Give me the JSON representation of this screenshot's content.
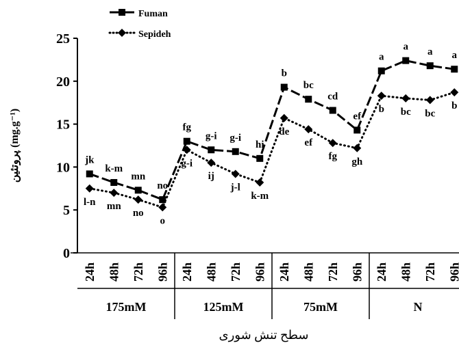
{
  "colors": {
    "ink": "#000000",
    "background": "#ffffff"
  },
  "chart_data": {
    "type": "line",
    "title": "",
    "xlabel": "سطح تنش شوری",
    "ylabel": "پروتئین (mg.g⁻¹)",
    "ylim": [
      0,
      25
    ],
    "yticks": [
      0,
      5,
      10,
      15,
      20,
      25
    ],
    "grid": false,
    "legend_position": "top-left",
    "groups": [
      "175mM",
      "125mM",
      "75mM",
      "N"
    ],
    "categories": [
      "24h",
      "48h",
      "72h",
      "96h"
    ],
    "series": [
      {
        "name": "Fuman",
        "style": "dashed-square",
        "values": [
          [
            9.2,
            8.2,
            7.3,
            6.2
          ],
          [
            13.0,
            12.0,
            11.8,
            11.0
          ],
          [
            19.3,
            17.9,
            16.6,
            14.3
          ],
          [
            21.2,
            22.4,
            21.8,
            21.4
          ]
        ],
        "labels": [
          [
            "jk",
            "k-m",
            "mn",
            "no"
          ],
          [
            "fg",
            "g-i",
            "g-i",
            "hi"
          ],
          [
            "b",
            "bc",
            "cd",
            "ef"
          ],
          [
            "a",
            "a",
            "a",
            "a"
          ]
        ]
      },
      {
        "name": "Sepideh",
        "style": "dotted-diamond",
        "values": [
          [
            7.5,
            7.0,
            6.2,
            5.3
          ],
          [
            12.0,
            10.5,
            9.2,
            8.2
          ],
          [
            15.7,
            14.4,
            12.8,
            12.2
          ],
          [
            18.3,
            18.0,
            17.8,
            18.7
          ]
        ],
        "labels": [
          [
            "l-n",
            "mn",
            "no",
            "o"
          ],
          [
            "g-i",
            "ij",
            "j-l",
            "k-m"
          ],
          [
            "de",
            "ef",
            "fg",
            "gh"
          ],
          [
            "b",
            "bc",
            "bc",
            "b"
          ]
        ]
      }
    ]
  }
}
